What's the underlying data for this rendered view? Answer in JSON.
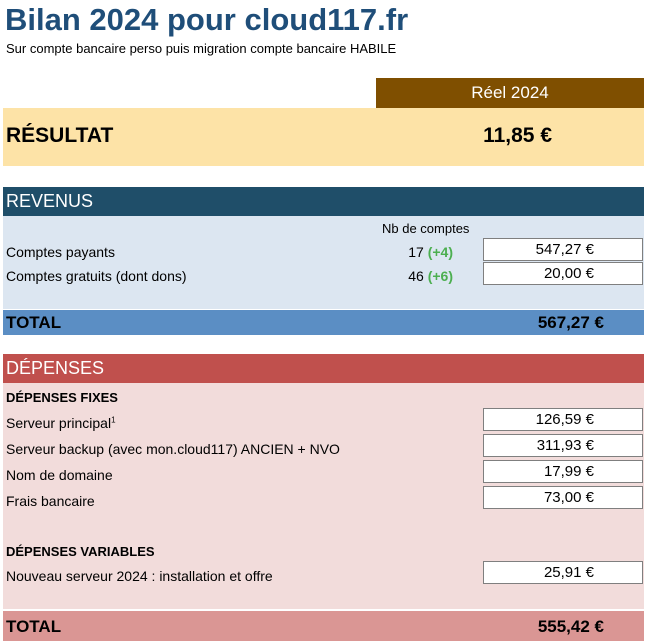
{
  "title": "Bilan 2024 pour cloud117.fr",
  "subtitle": "Sur compte bancaire perso puis migration compte bancaire HABILE",
  "column_header": "Réel 2024",
  "resultat": {
    "label": "RÉSULTAT",
    "value": "11,85 €"
  },
  "revenus": {
    "header": "REVENUS",
    "count_header": "Nb de comptes",
    "rows": [
      {
        "label": "Comptes payants",
        "count": "17",
        "delta": "(+4)",
        "value": "547,27 €"
      },
      {
        "label": "Comptes gratuits (dont dons)",
        "count": "46",
        "delta": "(+6)",
        "value": "20,00 €"
      }
    ],
    "total_label": "TOTAL",
    "total_value": "567,27 €"
  },
  "depenses": {
    "header": "DÉPENSES",
    "fixes_heading": "DÉPENSES FIXES",
    "fixes": [
      {
        "label": "Serveur principal",
        "note": "1",
        "value": "126,59 €"
      },
      {
        "label": "Serveur backup (avec mon.cloud117) ANCIEN + NVO",
        "value": "311,93 €"
      },
      {
        "label": "Nom de domaine",
        "value": "17,99 €"
      },
      {
        "label": "Frais bancaire",
        "value": "73,00 €"
      }
    ],
    "variables_heading": "DÉPENSES VARIABLES",
    "variables": [
      {
        "label": "Nouveau serveur 2024 : installation et offre",
        "value": "25,91 €"
      }
    ],
    "total_label": "TOTAL",
    "total_value": "555,42 €"
  }
}
